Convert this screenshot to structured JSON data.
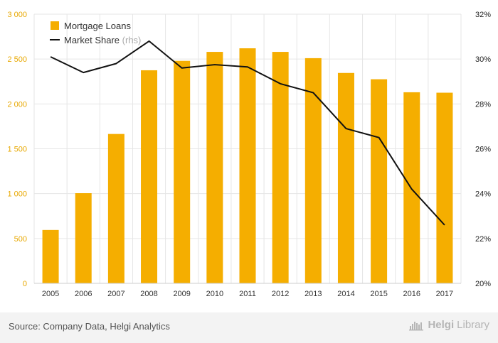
{
  "chart_data": {
    "type": "bar",
    "categories": [
      "2005",
      "2006",
      "2007",
      "2008",
      "2009",
      "2010",
      "2011",
      "2012",
      "2013",
      "2014",
      "2015",
      "2016",
      "2017"
    ],
    "series": [
      {
        "name": "Mortgage Loans",
        "type": "bar",
        "axis": "left",
        "values": [
          595,
          1005,
          1665,
          2375,
          2480,
          2580,
          2620,
          2580,
          2510,
          2345,
          2275,
          2130,
          2125
        ]
      },
      {
        "name": "Market Share",
        "name_suffix": "(rhs)",
        "type": "line",
        "axis": "right",
        "values": [
          30.1,
          29.4,
          29.8,
          30.8,
          29.6,
          29.75,
          29.65,
          28.9,
          28.5,
          26.9,
          26.5,
          24.2,
          22.6
        ]
      }
    ],
    "y_left": {
      "ticks": [
        "0",
        "500",
        "1 000",
        "1 500",
        "2 000",
        "2 500",
        "3 000"
      ],
      "ylim": [
        0,
        3000
      ]
    },
    "y_right": {
      "ticks": [
        "20%",
        "22%",
        "24%",
        "26%",
        "28%",
        "30%",
        "32%"
      ],
      "ylim": [
        20,
        32
      ]
    },
    "legend_position": "top-left",
    "grid": true,
    "colors": {
      "bar": "#f5ae00",
      "line": "#111111",
      "left_ticks": "#e8a800",
      "right_ticks": "#222222",
      "grid": "#e6e6e6"
    }
  },
  "footer": {
    "source": "Source: Company Data, Helgi Analytics",
    "brand_part1": "Helgi",
    "brand_part2": "Library"
  },
  "icons": {
    "logo": "helgi-library-logo-icon"
  }
}
